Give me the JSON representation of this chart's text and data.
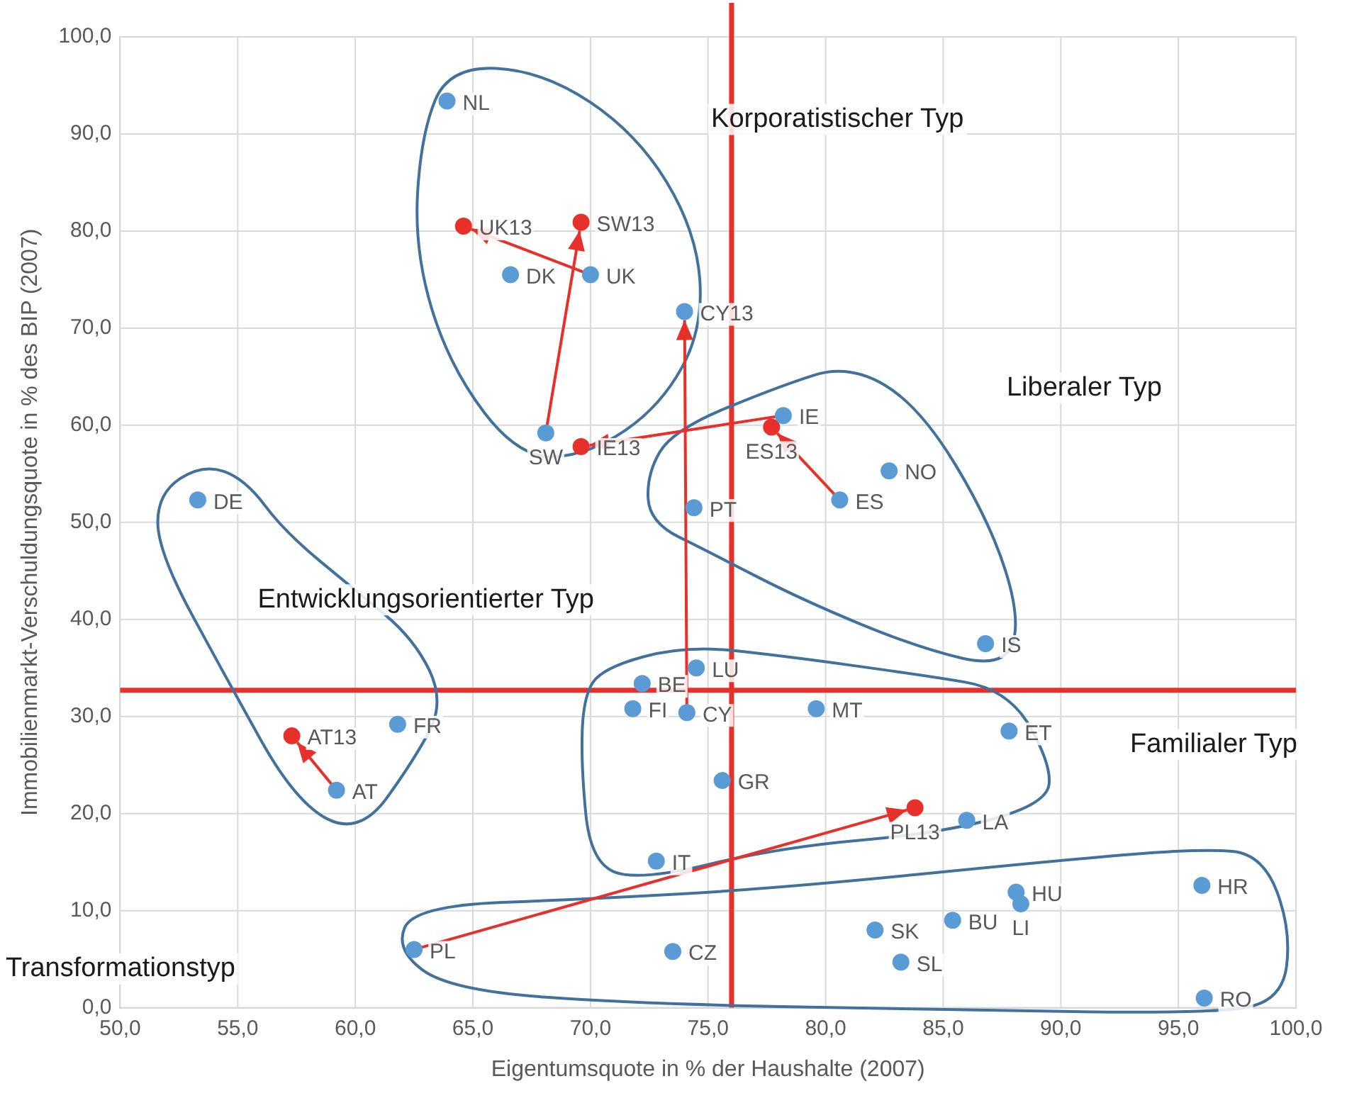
{
  "chart_data": {
    "type": "scatter",
    "xlabel": "Eigentumsquote in % der Haushalte (2007)",
    "ylabel": "Immobilienmarkt-Verschuldungsquote in % des BIP (2007)",
    "xlim": [
      50,
      100
    ],
    "xticks": [
      {
        "value": 50,
        "label": "50,0"
      },
      {
        "value": 55,
        "label": "55,0"
      },
      {
        "value": 60,
        "label": "60,0"
      },
      {
        "value": 65,
        "label": "65,0"
      },
      {
        "value": 70,
        "label": "70,0"
      },
      {
        "value": 75,
        "label": "75,0"
      },
      {
        "value": 80,
        "label": "80,0"
      },
      {
        "value": 85,
        "label": "85,0"
      },
      {
        "value": 90,
        "label": "90,0"
      },
      {
        "value": 95,
        "label": "95,0"
      },
      {
        "value": 100,
        "label": "100,0"
      }
    ],
    "ylim": [
      0,
      100
    ],
    "yticks": [
      {
        "value": 0,
        "label": "0,0"
      },
      {
        "value": 10,
        "label": "10,0"
      },
      {
        "value": 20,
        "label": "20,0"
      },
      {
        "value": 30,
        "label": "30,0"
      },
      {
        "value": 40,
        "label": "40,0"
      },
      {
        "value": 50,
        "label": "50,0"
      },
      {
        "value": 60,
        "label": "60,0"
      },
      {
        "value": 70,
        "label": "70,0"
      },
      {
        "value": 80,
        "label": "80,0"
      },
      {
        "value": 90,
        "label": "90,0"
      },
      {
        "value": 100,
        "label": "100,0"
      }
    ],
    "grid": true,
    "legend": false,
    "marker": "circle",
    "series": [
      {
        "type": "scatter",
        "color": "#5b9bd5",
        "x": [
          70.0,
          68.1,
          74.1,
          78.2,
          80.6,
          59.2,
          62.5,
          63.9,
          66.6,
          53.3,
          82.7,
          74.4,
          86.8,
          72.2,
          74.5,
          71.8,
          79.6,
          87.8,
          75.6,
          86.0,
          61.8,
          72.8,
          88.1,
          88.3,
          96.0,
          85.4,
          82.1,
          83.2,
          73.5,
          96.1
        ],
        "values": [
          75.5,
          59.2,
          30.4,
          61.0,
          52.3,
          22.4,
          6.0,
          93.4,
          75.5,
          52.3,
          55.3,
          51.5,
          37.5,
          33.4,
          35.0,
          30.8,
          30.8,
          28.5,
          23.4,
          19.3,
          29.2,
          15.1,
          11.9,
          10.7,
          12.6,
          9.0,
          8.0,
          4.7,
          5.8,
          1.0
        ],
        "value_labels": [
          "UK",
          "SW",
          "CY",
          "IE",
          "ES",
          "AT",
          "PL",
          "NL",
          "DK",
          "DE",
          "NO",
          "PT",
          "IS",
          "BE",
          "LU",
          "FI",
          "MT",
          "ET",
          "GR",
          "LA",
          "FR",
          "IT",
          "HU",
          "LI",
          "HR",
          "BU",
          "SK",
          "SL",
          "CZ",
          "RO"
        ]
      },
      {
        "type": "scatter",
        "color": "#e8302a",
        "colors": [
          "#e8302a",
          "#e8302a",
          "#5b9bd5",
          "#e8302a",
          "#e8302a",
          "#e8302a",
          "#e8302a"
        ],
        "x": [
          64.6,
          69.6,
          74.0,
          69.6,
          77.7,
          57.3,
          83.8
        ],
        "values": [
          80.5,
          80.9,
          71.7,
          57.8,
          59.8,
          28.0,
          20.6
        ],
        "value_labels": [
          "UK13",
          "SW13",
          "CY13",
          "IE13",
          "ES13",
          "AT13",
          "PL13"
        ]
      }
    ],
    "ref_lines": [
      {
        "axis": "x",
        "value": 76.0,
        "color": "#e8302a"
      },
      {
        "axis": "y",
        "value": 32.7,
        "color": "#e8302a"
      }
    ],
    "annotations": [
      "Korporatistischer Typ",
      "Liberaler Typ",
      "Entwicklungsorientierter Typ",
      "Familialer Typ",
      "Transformationstyp"
    ]
  }
}
